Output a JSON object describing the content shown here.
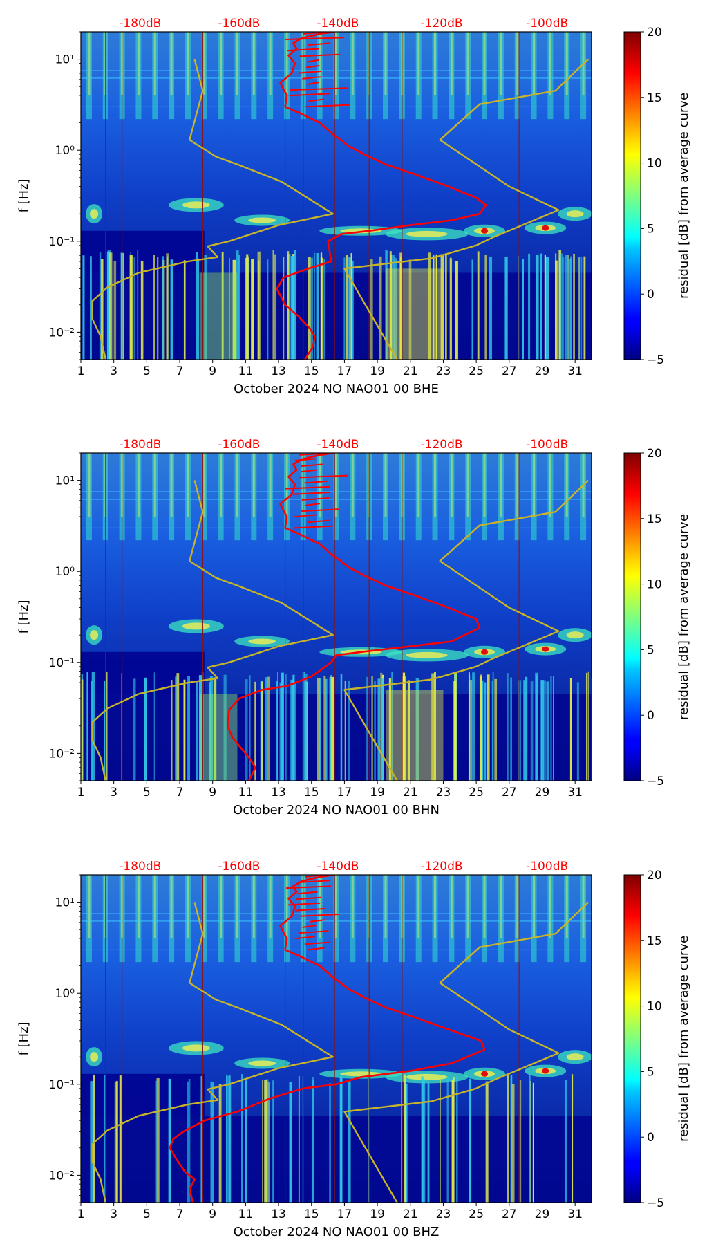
{
  "figure": {
    "colors": {
      "spectrogram_low": "#00008f",
      "noise_curve": "#ff0000",
      "model_curves": "#c8b428",
      "day_lines": "#8b1010",
      "db_labels": "#ff0000"
    },
    "db_scale_labels": [
      "-180dB",
      "-160dB",
      "-140dB",
      "-120dB",
      "-100dB"
    ],
    "y_axis_label": "f [Hz]",
    "colorbar": {
      "label": "residual [dB] from average curve",
      "range": [
        -5,
        20
      ],
      "ticks": [
        "20",
        "15",
        "10",
        "5",
        "0",
        "−5"
      ],
      "colormap": "jet"
    }
  },
  "chart_data": [
    {
      "type": "heatmap",
      "title": "",
      "xlabel": "October 2024 NO NAO01 00 BHE",
      "ylabel": "f [Hz]",
      "xlim": [
        1,
        32
      ],
      "ylim": [
        0.005,
        20
      ],
      "yscale": "log",
      "x_ticks": [
        "1",
        "3",
        "5",
        "7",
        "9",
        "11",
        "13",
        "15",
        "17",
        "19",
        "21",
        "23",
        "25",
        "27",
        "29",
        "31"
      ],
      "y_ticks": [
        "10⁻²",
        "10⁻¹",
        "10⁰",
        "10¹"
      ],
      "db_top_ticks": [
        "-180dB",
        "-160dB",
        "-140dB",
        "-120dB",
        "-100dB"
      ],
      "series": [
        {
          "kind": "noise_curve",
          "x": [
            14.6,
            15.1,
            15.2,
            14.9,
            14.2,
            13.4,
            12.9,
            13.3,
            14.8,
            16.2,
            16.0,
            16.8,
            18.5,
            21.0,
            23.5,
            25.2,
            25.6,
            25.0,
            23.0,
            21.2,
            19.5,
            18.2,
            17.3,
            16.3,
            15.5,
            14.2,
            13.4,
            13.5,
            13.1,
            13.8,
            14.0,
            13.6,
            14.1,
            13.9,
            14.4,
            15.5,
            16.4
          ],
          "y": [
            0.005,
            0.007,
            0.009,
            0.011,
            0.015,
            0.02,
            0.03,
            0.04,
            0.05,
            0.06,
            0.1,
            0.12,
            0.13,
            0.15,
            0.17,
            0.2,
            0.25,
            0.3,
            0.42,
            0.55,
            0.7,
            0.9,
            1.1,
            1.5,
            2.0,
            2.6,
            3.0,
            4.0,
            5.5,
            7.0,
            9.0,
            11.0,
            13.0,
            15.0,
            17.0,
            19.0,
            20.0
          ]
        },
        {
          "kind": "low_noise_model",
          "x": [
            2.5,
            2.2,
            1.7,
            1.7,
            2.6,
            4.5,
            7.5,
            9.3,
            8.7,
            10.0,
            13.0,
            16.3,
            13.2,
            10.5,
            9.2,
            7.6,
            8.4,
            7.9
          ],
          "y": [
            0.005,
            0.009,
            0.014,
            0.022,
            0.031,
            0.045,
            0.06,
            0.067,
            0.088,
            0.1,
            0.15,
            0.2,
            0.45,
            0.7,
            0.85,
            1.3,
            4.5,
            10.0
          ]
        },
        {
          "kind": "high_noise_model",
          "x": [
            20.2,
            17.0,
            22.3,
            25.0,
            26.0,
            30.0,
            27.0,
            22.8,
            25.2,
            29.8,
            31.8
          ],
          "y": [
            0.005,
            0.05,
            0.065,
            0.09,
            0.11,
            0.22,
            0.4,
            1.3,
            3.2,
            4.5,
            10.0
          ]
        }
      ]
    },
    {
      "type": "heatmap",
      "title": "",
      "xlabel": "October 2024 NO NAO01 00 BHN",
      "ylabel": "f [Hz]",
      "xlim": [
        1,
        32
      ],
      "ylim": [
        0.005,
        20
      ],
      "yscale": "log",
      "x_ticks": [
        "1",
        "3",
        "5",
        "7",
        "9",
        "11",
        "13",
        "15",
        "17",
        "19",
        "21",
        "23",
        "25",
        "27",
        "29",
        "31"
      ],
      "y_ticks": [
        "10⁻²",
        "10⁻¹",
        "10⁰",
        "10¹"
      ],
      "db_top_ticks": [
        "-180dB",
        "-160dB",
        "-140dB",
        "-120dB",
        "-100dB"
      ],
      "series": [
        {
          "kind": "noise_curve",
          "x": [
            11.2,
            11.6,
            11.2,
            10.8,
            10.2,
            9.9,
            10.0,
            10.6,
            12.0,
            13.5,
            15.0,
            16.2,
            16.5,
            18.0,
            21.0,
            23.5,
            25.2,
            25.0,
            23.0,
            21.2,
            19.5,
            18.2,
            17.3,
            16.3,
            15.5,
            14.2,
            13.4,
            13.5,
            13.1,
            13.8,
            14.0,
            13.6,
            14.1,
            13.9,
            14.4,
            15.5,
            16.4
          ],
          "y": [
            0.005,
            0.007,
            0.009,
            0.011,
            0.015,
            0.02,
            0.03,
            0.04,
            0.05,
            0.055,
            0.07,
            0.1,
            0.12,
            0.13,
            0.15,
            0.17,
            0.24,
            0.3,
            0.42,
            0.55,
            0.7,
            0.9,
            1.1,
            1.5,
            2.0,
            2.6,
            3.0,
            4.0,
            5.5,
            7.0,
            9.0,
            11.0,
            13.0,
            15.0,
            17.0,
            19.0,
            20.0
          ]
        },
        {
          "kind": "low_noise_model",
          "x": [
            2.5,
            2.2,
            1.7,
            1.7,
            2.6,
            4.5,
            7.5,
            9.3,
            8.7,
            10.0,
            13.0,
            16.3,
            13.2,
            10.5,
            9.2,
            7.6,
            8.4,
            7.9
          ],
          "y": [
            0.005,
            0.009,
            0.014,
            0.022,
            0.031,
            0.045,
            0.06,
            0.067,
            0.088,
            0.1,
            0.15,
            0.2,
            0.45,
            0.7,
            0.85,
            1.3,
            4.5,
            10.0
          ]
        },
        {
          "kind": "high_noise_model",
          "x": [
            20.2,
            17.0,
            22.3,
            25.0,
            26.0,
            30.0,
            27.0,
            22.8,
            25.2,
            29.8,
            31.8
          ],
          "y": [
            0.005,
            0.05,
            0.065,
            0.09,
            0.11,
            0.22,
            0.4,
            1.3,
            3.2,
            4.5,
            10.0
          ]
        }
      ]
    },
    {
      "type": "heatmap",
      "title": "",
      "xlabel": "October 2024 NO NAO01 00 BHZ",
      "ylabel": "f [Hz]",
      "xlim": [
        1,
        32
      ],
      "ylim": [
        0.005,
        20
      ],
      "yscale": "log",
      "x_ticks": [
        "1",
        "3",
        "5",
        "7",
        "9",
        "11",
        "13",
        "15",
        "17",
        "19",
        "21",
        "23",
        "25",
        "27",
        "29",
        "31"
      ],
      "y_ticks": [
        "10⁻²",
        "10⁻¹",
        "10⁰",
        "10¹"
      ],
      "db_top_ticks": [
        "-180dB",
        "-160dB",
        "-140dB",
        "-120dB",
        "-100dB"
      ],
      "series": [
        {
          "kind": "noise_curve",
          "x": [
            7.8,
            7.6,
            7.9,
            7.3,
            6.8,
            6.4,
            6.6,
            7.2,
            8.5,
            10.5,
            12.5,
            14.5,
            16.5,
            18.0,
            21.0,
            23.5,
            25.5,
            25.3,
            23.0,
            21.2,
            19.5,
            18.2,
            17.3,
            16.3,
            15.5,
            14.2,
            13.4,
            13.5,
            13.1,
            13.8,
            14.0,
            13.6,
            14.1,
            13.9,
            14.4,
            15.5,
            16.4
          ],
          "y": [
            0.005,
            0.007,
            0.009,
            0.011,
            0.015,
            0.02,
            0.025,
            0.03,
            0.04,
            0.05,
            0.07,
            0.09,
            0.1,
            0.12,
            0.14,
            0.17,
            0.24,
            0.3,
            0.42,
            0.55,
            0.7,
            0.9,
            1.1,
            1.5,
            2.0,
            2.6,
            3.0,
            4.0,
            5.5,
            7.0,
            9.0,
            11.0,
            13.0,
            15.0,
            17.0,
            19.0,
            20.0
          ]
        },
        {
          "kind": "low_noise_model",
          "x": [
            2.5,
            2.2,
            1.7,
            1.7,
            2.6,
            4.5,
            7.5,
            9.3,
            8.7,
            10.0,
            13.0,
            16.3,
            13.2,
            10.5,
            9.2,
            7.6,
            8.4,
            7.9
          ],
          "y": [
            0.005,
            0.009,
            0.014,
            0.022,
            0.031,
            0.045,
            0.06,
            0.067,
            0.088,
            0.1,
            0.15,
            0.2,
            0.45,
            0.7,
            0.85,
            1.3,
            4.5,
            10.0
          ]
        },
        {
          "kind": "high_noise_model",
          "x": [
            20.2,
            17.0,
            22.3,
            25.0,
            26.0,
            30.0,
            27.0,
            22.8,
            25.2,
            29.8,
            31.8
          ],
          "y": [
            0.005,
            0.05,
            0.065,
            0.09,
            0.11,
            0.22,
            0.4,
            1.3,
            3.2,
            4.5,
            10.0
          ]
        }
      ]
    }
  ]
}
